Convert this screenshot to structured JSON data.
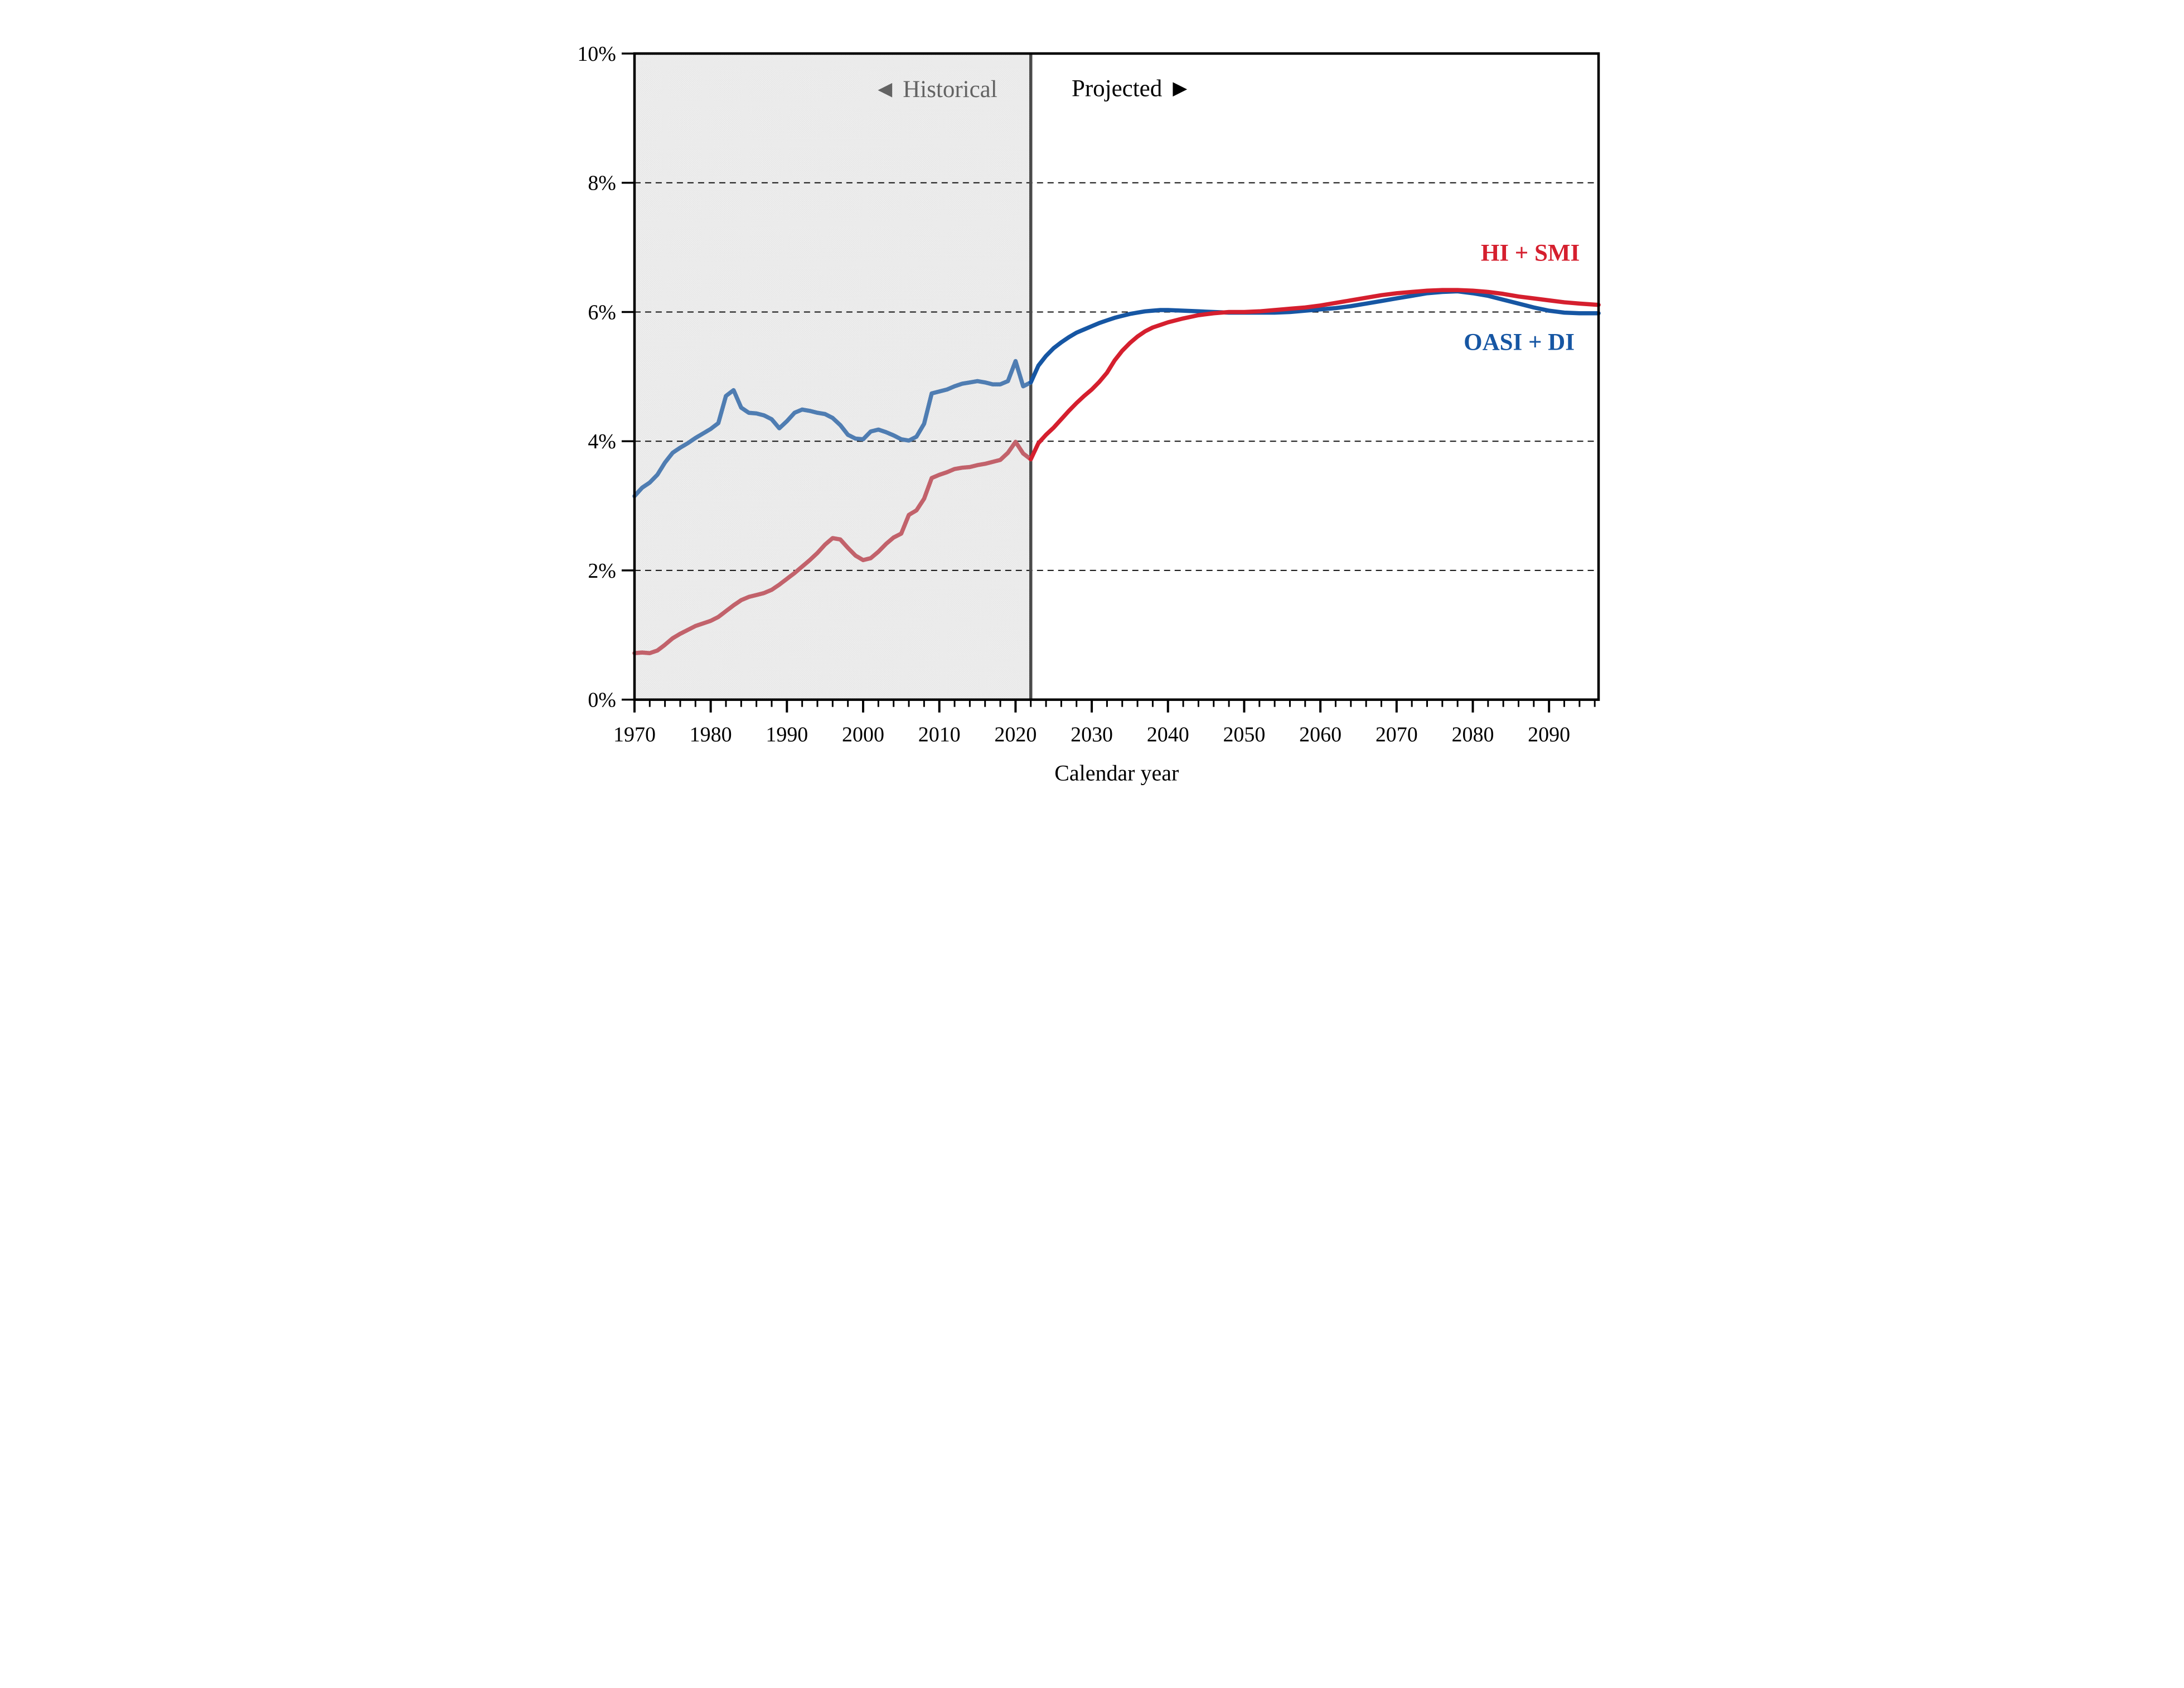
{
  "labels": {
    "historical": "◄ Historical",
    "projected": "Projected ►",
    "hi_smi": "HI + SMI",
    "oasdi": "OASI + DI",
    "x_axis_title": "Calendar year"
  },
  "colors": {
    "historical_text": "#636363",
    "projected_text": "#000000",
    "hi_smi_label": "#d51f2e",
    "oasdi_label": "#1656a3",
    "frame": "#000000",
    "divider": "#4b4b4b",
    "gridline": "#111111",
    "historical_region_base": "#efefef",
    "historical_region_dot": "#dcdcdc"
  },
  "chart_data": {
    "type": "line",
    "title": "",
    "xlabel": "Calendar year",
    "ylabel": "",
    "x_domain": [
      1970,
      2096.5
    ],
    "y_domain": [
      0,
      10
    ],
    "boundary_year": 2022,
    "grid": "dashed-horizontal",
    "legend_position": "inline-right",
    "y_ticks": [
      {
        "value": 0,
        "label": "0%"
      },
      {
        "value": 2,
        "label": "2%"
      },
      {
        "value": 4,
        "label": "4%"
      },
      {
        "value": 6,
        "label": "6%"
      },
      {
        "value": 8,
        "label": "8%"
      },
      {
        "value": 10,
        "label": "10%"
      }
    ],
    "gridlines_percent": [
      2,
      4,
      6,
      8
    ],
    "x_major_ticks": [
      1970,
      1980,
      1990,
      2000,
      2010,
      2020,
      2030,
      2040,
      2050,
      2060,
      2070,
      2080,
      2090
    ],
    "x_minor_tick_step": 2,
    "series": [
      {
        "name": "OASI + DI",
        "color_historical": "#4f7db2",
        "color_projected": "#1656a3",
        "historical": [
          [
            1970,
            3.15
          ],
          [
            1971,
            3.28
          ],
          [
            1972,
            3.36
          ],
          [
            1973,
            3.48
          ],
          [
            1974,
            3.67
          ],
          [
            1975,
            3.82
          ],
          [
            1976,
            3.9
          ],
          [
            1977,
            3.97
          ],
          [
            1978,
            4.05
          ],
          [
            1979,
            4.12
          ],
          [
            1980,
            4.19
          ],
          [
            1981,
            4.28
          ],
          [
            1982,
            4.7
          ],
          [
            1983,
            4.79
          ],
          [
            1984,
            4.52
          ],
          [
            1985,
            4.44
          ],
          [
            1986,
            4.43
          ],
          [
            1987,
            4.4
          ],
          [
            1988,
            4.34
          ],
          [
            1989,
            4.2
          ],
          [
            1990,
            4.31
          ],
          [
            1991,
            4.44
          ],
          [
            1992,
            4.49
          ],
          [
            1993,
            4.47
          ],
          [
            1994,
            4.44
          ],
          [
            1995,
            4.42
          ],
          [
            1996,
            4.36
          ],
          [
            1997,
            4.25
          ],
          [
            1998,
            4.1
          ],
          [
            1999,
            4.04
          ],
          [
            2000,
            4.03
          ],
          [
            2001,
            4.15
          ],
          [
            2002,
            4.18
          ],
          [
            2003,
            4.14
          ],
          [
            2004,
            4.09
          ],
          [
            2005,
            4.03
          ],
          [
            2006,
            4.01
          ],
          [
            2007,
            4.07
          ],
          [
            2008,
            4.27
          ],
          [
            2009,
            4.74
          ],
          [
            2010,
            4.77
          ],
          [
            2011,
            4.8
          ],
          [
            2012,
            4.85
          ],
          [
            2013,
            4.89
          ],
          [
            2014,
            4.91
          ],
          [
            2015,
            4.93
          ],
          [
            2016,
            4.91
          ],
          [
            2017,
            4.88
          ],
          [
            2018,
            4.88
          ],
          [
            2019,
            4.93
          ],
          [
            2020,
            5.24
          ],
          [
            2021,
            4.85
          ],
          [
            2022,
            4.91
          ]
        ],
        "projected": [
          [
            2022,
            4.91
          ],
          [
            2023,
            5.17
          ],
          [
            2024,
            5.32
          ],
          [
            2025,
            5.44
          ],
          [
            2026,
            5.53
          ],
          [
            2027,
            5.61
          ],
          [
            2028,
            5.68
          ],
          [
            2029,
            5.73
          ],
          [
            2030,
            5.78
          ],
          [
            2031,
            5.83
          ],
          [
            2032,
            5.87
          ],
          [
            2033,
            5.91
          ],
          [
            2034,
            5.94
          ],
          [
            2035,
            5.97
          ],
          [
            2036,
            5.99
          ],
          [
            2037,
            6.01
          ],
          [
            2038,
            6.02
          ],
          [
            2039,
            6.03
          ],
          [
            2040,
            6.03
          ],
          [
            2042,
            6.02
          ],
          [
            2044,
            6.01
          ],
          [
            2046,
            6.0
          ],
          [
            2048,
            5.99
          ],
          [
            2050,
            5.99
          ],
          [
            2052,
            5.99
          ],
          [
            2054,
            5.99
          ],
          [
            2056,
            6.0
          ],
          [
            2058,
            6.02
          ],
          [
            2060,
            6.04
          ],
          [
            2062,
            6.06
          ],
          [
            2064,
            6.09
          ],
          [
            2066,
            6.13
          ],
          [
            2068,
            6.17
          ],
          [
            2070,
            6.21
          ],
          [
            2072,
            6.25
          ],
          [
            2074,
            6.29
          ],
          [
            2076,
            6.31
          ],
          [
            2078,
            6.32
          ],
          [
            2080,
            6.29
          ],
          [
            2082,
            6.25
          ],
          [
            2084,
            6.19
          ],
          [
            2086,
            6.13
          ],
          [
            2088,
            6.07
          ],
          [
            2090,
            6.02
          ],
          [
            2092,
            5.99
          ],
          [
            2094,
            5.98
          ],
          [
            2096.5,
            5.98
          ]
        ]
      },
      {
        "name": "HI + SMI",
        "color_historical": "#c2626b",
        "color_projected": "#d51f2e",
        "historical": [
          [
            1970,
            0.72
          ],
          [
            1971,
            0.73
          ],
          [
            1972,
            0.72
          ],
          [
            1973,
            0.76
          ],
          [
            1974,
            0.85
          ],
          [
            1975,
            0.95
          ],
          [
            1976,
            1.02
          ],
          [
            1977,
            1.08
          ],
          [
            1978,
            1.14
          ],
          [
            1979,
            1.18
          ],
          [
            1980,
            1.22
          ],
          [
            1981,
            1.28
          ],
          [
            1982,
            1.37
          ],
          [
            1983,
            1.46
          ],
          [
            1984,
            1.54
          ],
          [
            1985,
            1.59
          ],
          [
            1986,
            1.62
          ],
          [
            1987,
            1.65
          ],
          [
            1988,
            1.7
          ],
          [
            1989,
            1.78
          ],
          [
            1990,
            1.87
          ],
          [
            1991,
            1.96
          ],
          [
            1992,
            2.06
          ],
          [
            1993,
            2.16
          ],
          [
            1994,
            2.27
          ],
          [
            1995,
            2.4
          ],
          [
            1996,
            2.5
          ],
          [
            1997,
            2.48
          ],
          [
            1998,
            2.35
          ],
          [
            1999,
            2.23
          ],
          [
            2000,
            2.16
          ],
          [
            2001,
            2.19
          ],
          [
            2002,
            2.29
          ],
          [
            2003,
            2.41
          ],
          [
            2004,
            2.51
          ],
          [
            2005,
            2.57
          ],
          [
            2006,
            2.86
          ],
          [
            2007,
            2.93
          ],
          [
            2008,
            3.11
          ],
          [
            2009,
            3.43
          ],
          [
            2010,
            3.48
          ],
          [
            2011,
            3.52
          ],
          [
            2012,
            3.57
          ],
          [
            2013,
            3.59
          ],
          [
            2014,
            3.6
          ],
          [
            2015,
            3.63
          ],
          [
            2016,
            3.65
          ],
          [
            2017,
            3.68
          ],
          [
            2018,
            3.71
          ],
          [
            2019,
            3.82
          ],
          [
            2020,
            3.99
          ],
          [
            2021,
            3.81
          ],
          [
            2022,
            3.72
          ]
        ],
        "projected": [
          [
            2022,
            3.72
          ],
          [
            2023,
            3.97
          ],
          [
            2024,
            4.1
          ],
          [
            2025,
            4.21
          ],
          [
            2026,
            4.34
          ],
          [
            2027,
            4.47
          ],
          [
            2028,
            4.59
          ],
          [
            2029,
            4.7
          ],
          [
            2030,
            4.8
          ],
          [
            2031,
            4.92
          ],
          [
            2032,
            5.06
          ],
          [
            2033,
            5.25
          ],
          [
            2034,
            5.4
          ],
          [
            2035,
            5.52
          ],
          [
            2036,
            5.62
          ],
          [
            2037,
            5.7
          ],
          [
            2038,
            5.76
          ],
          [
            2039,
            5.8
          ],
          [
            2040,
            5.84
          ],
          [
            2042,
            5.9
          ],
          [
            2044,
            5.95
          ],
          [
            2046,
            5.98
          ],
          [
            2048,
            6.0
          ],
          [
            2050,
            6.0
          ],
          [
            2052,
            6.01
          ],
          [
            2054,
            6.03
          ],
          [
            2056,
            6.05
          ],
          [
            2058,
            6.07
          ],
          [
            2060,
            6.1
          ],
          [
            2062,
            6.14
          ],
          [
            2064,
            6.18
          ],
          [
            2066,
            6.22
          ],
          [
            2068,
            6.26
          ],
          [
            2070,
            6.29
          ],
          [
            2072,
            6.31
          ],
          [
            2074,
            6.33
          ],
          [
            2076,
            6.34
          ],
          [
            2078,
            6.34
          ],
          [
            2080,
            6.33
          ],
          [
            2082,
            6.31
          ],
          [
            2084,
            6.28
          ],
          [
            2086,
            6.24
          ],
          [
            2088,
            6.21
          ],
          [
            2090,
            6.18
          ],
          [
            2092,
            6.15
          ],
          [
            2094,
            6.13
          ],
          [
            2096.5,
            6.11
          ]
        ]
      }
    ],
    "annotations": [
      {
        "text": "◄ Historical",
        "x_year": 2009.5,
        "y_value": 9.45,
        "color": "#636363"
      },
      {
        "text": "Projected ►",
        "x_year": 2035.3,
        "y_value": 9.47,
        "color": "#000000"
      },
      {
        "text": "HI + SMI",
        "x_year": 2087.5,
        "y_value": 6.93,
        "color": "#d51f2e"
      },
      {
        "text": "OASI + DI",
        "x_year": 2086.0,
        "y_value": 5.55,
        "color": "#1656a3"
      }
    ]
  }
}
